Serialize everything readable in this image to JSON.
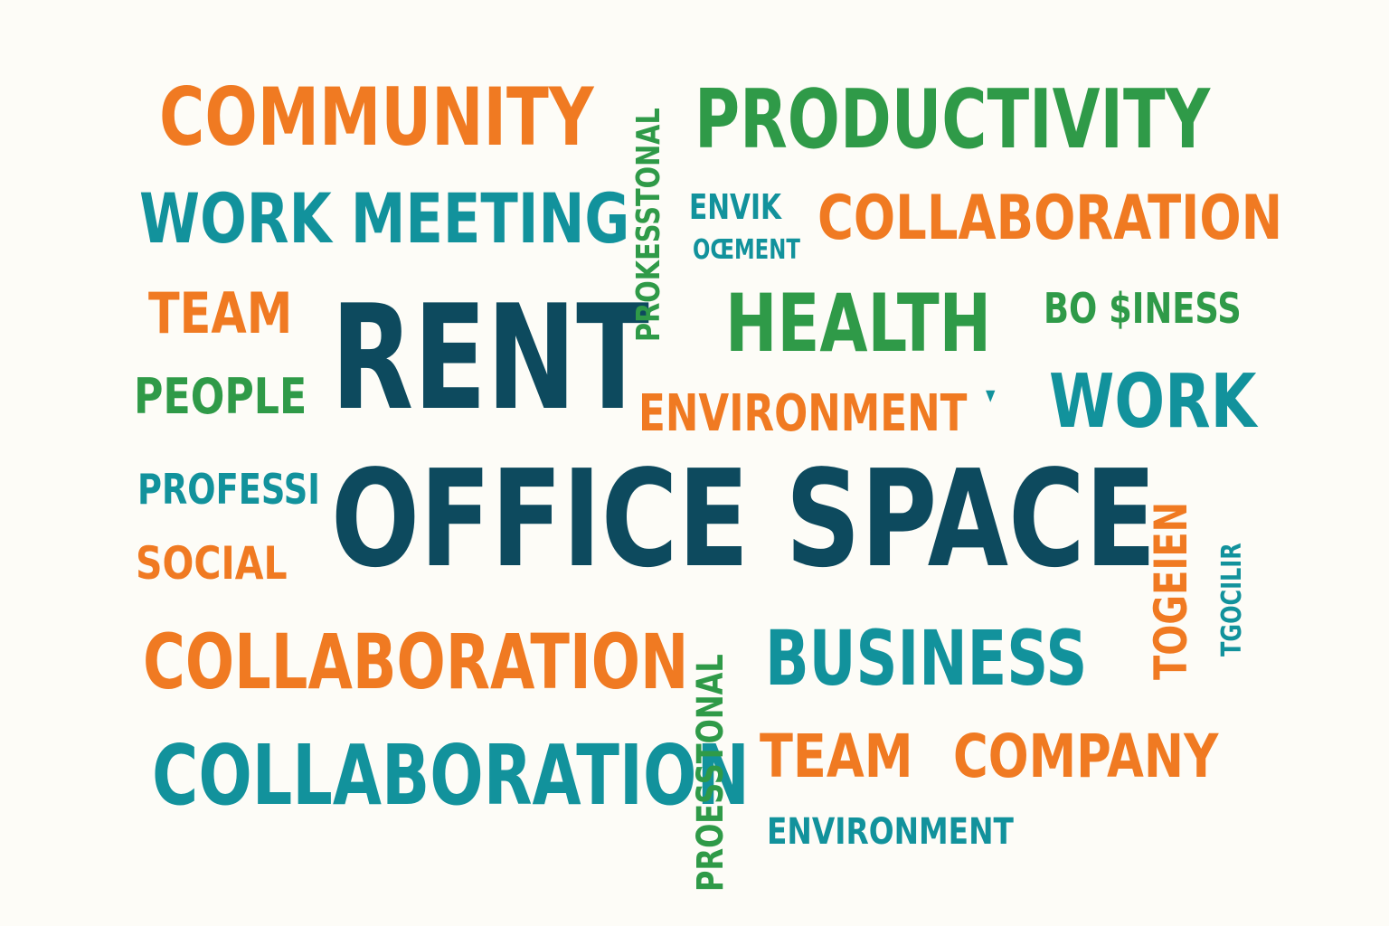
{
  "words": {
    "community": "COMMUNITY",
    "productivity": "PRODUCTIVITY",
    "work_meeting": "WORK MEETING",
    "envik": "ENVIK",
    "oement": "OŒMENT",
    "collaboration_top": "COLLABORATION",
    "team_left": "TEAM",
    "rent": "RENT",
    "health": "HEALTH",
    "bo_siness": "BO $INESS",
    "people": "PEOPLE",
    "environment_mid": "ENVIRONMENT",
    "work_right": "WORK",
    "professi": "PROFESSI",
    "office_space": "OFFICE SPACE",
    "social": "SOCIAL",
    "collaboration_mid": "COLLABORATION",
    "business": "BUSINESS",
    "collaboration_bottom": "COLLABORATION",
    "team_bottom": "TEAM",
    "company": "COMPANY",
    "environment_bottom": "ENVIRONMENT",
    "professional_vertical_top": "PROKESSTONAL",
    "professional_vertical_bottom": "PROESSTONAL",
    "togeien": "TOGEIEN",
    "tgocilir": "TGOCILIR",
    "small_mark": "▾"
  },
  "colors": {
    "orange": "#f07a22",
    "green": "#2f9a48",
    "teal": "#12929c",
    "navy": "#0d4a5e",
    "background": "#fdfcf7"
  }
}
